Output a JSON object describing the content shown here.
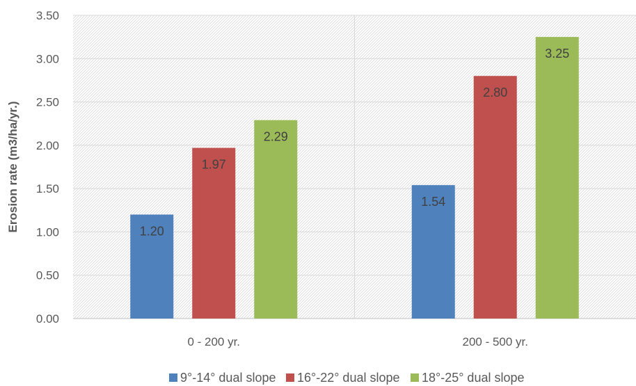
{
  "chart_data": {
    "type": "bar",
    "categories": [
      "0 - 200 yr.",
      "200 - 500 yr."
    ],
    "series": [
      {
        "name": "9°-14° dual slope",
        "values": [
          1.2,
          1.54
        ],
        "labels": [
          "1.20",
          "1.54"
        ],
        "color": "#4f81bd"
      },
      {
        "name": "16°-22° dual slope",
        "values": [
          1.97,
          2.8
        ],
        "labels": [
          "1.97",
          "2.80"
        ],
        "color": "#c0504d"
      },
      {
        "name": "18°-25° dual slope",
        "values": [
          2.29,
          3.25
        ],
        "labels": [
          "2.29",
          "3.25"
        ],
        "color": "#9bbb59"
      }
    ],
    "title": "",
    "xlabel": "",
    "ylabel": "Erosion rate (m3/ha/yr.)",
    "ylim": [
      0,
      3.5
    ],
    "yticks": [
      "0.00",
      "0.50",
      "1.00",
      "1.50",
      "2.00",
      "2.50",
      "3.00",
      "3.50"
    ],
    "grid": true,
    "legend": "bottom"
  }
}
